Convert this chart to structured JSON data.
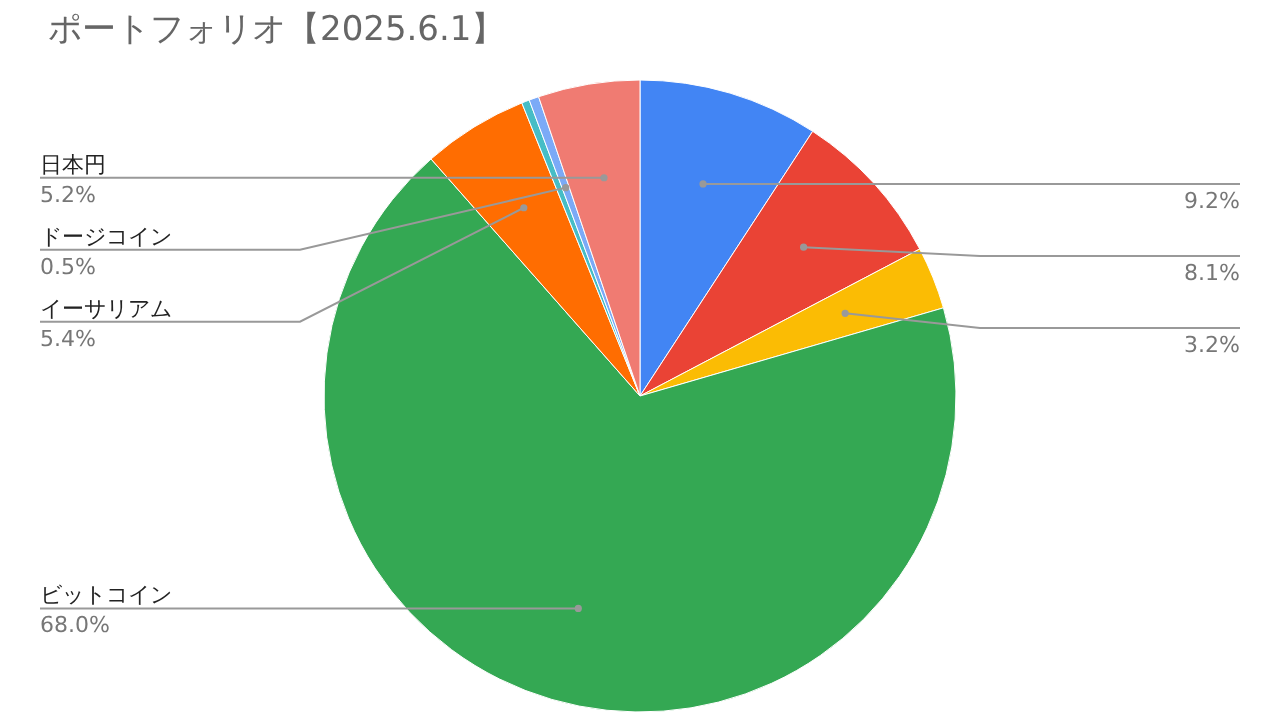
{
  "chart_data": {
    "type": "pie",
    "title": "ポートフォリオ【2025.6.1】",
    "categories": [
      null,
      null,
      null,
      "ビットコイン",
      "イーサリアム",
      null,
      "ドージコイン",
      "日本円"
    ],
    "values": [
      9.2,
      8.1,
      3.2,
      68.0,
      5.4,
      0.4,
      0.5,
      5.2
    ],
    "value_labels": [
      "9.2%",
      "8.1%",
      "3.2%",
      "68.0%",
      "5.4%",
      null,
      "0.5%",
      "5.2%"
    ],
    "colors": [
      "#4285f4",
      "#ea4335",
      "#fbbc04",
      "#34a853",
      "#ff6d01",
      "#46bdc6",
      "#7baaf7",
      "#f07b72"
    ]
  }
}
